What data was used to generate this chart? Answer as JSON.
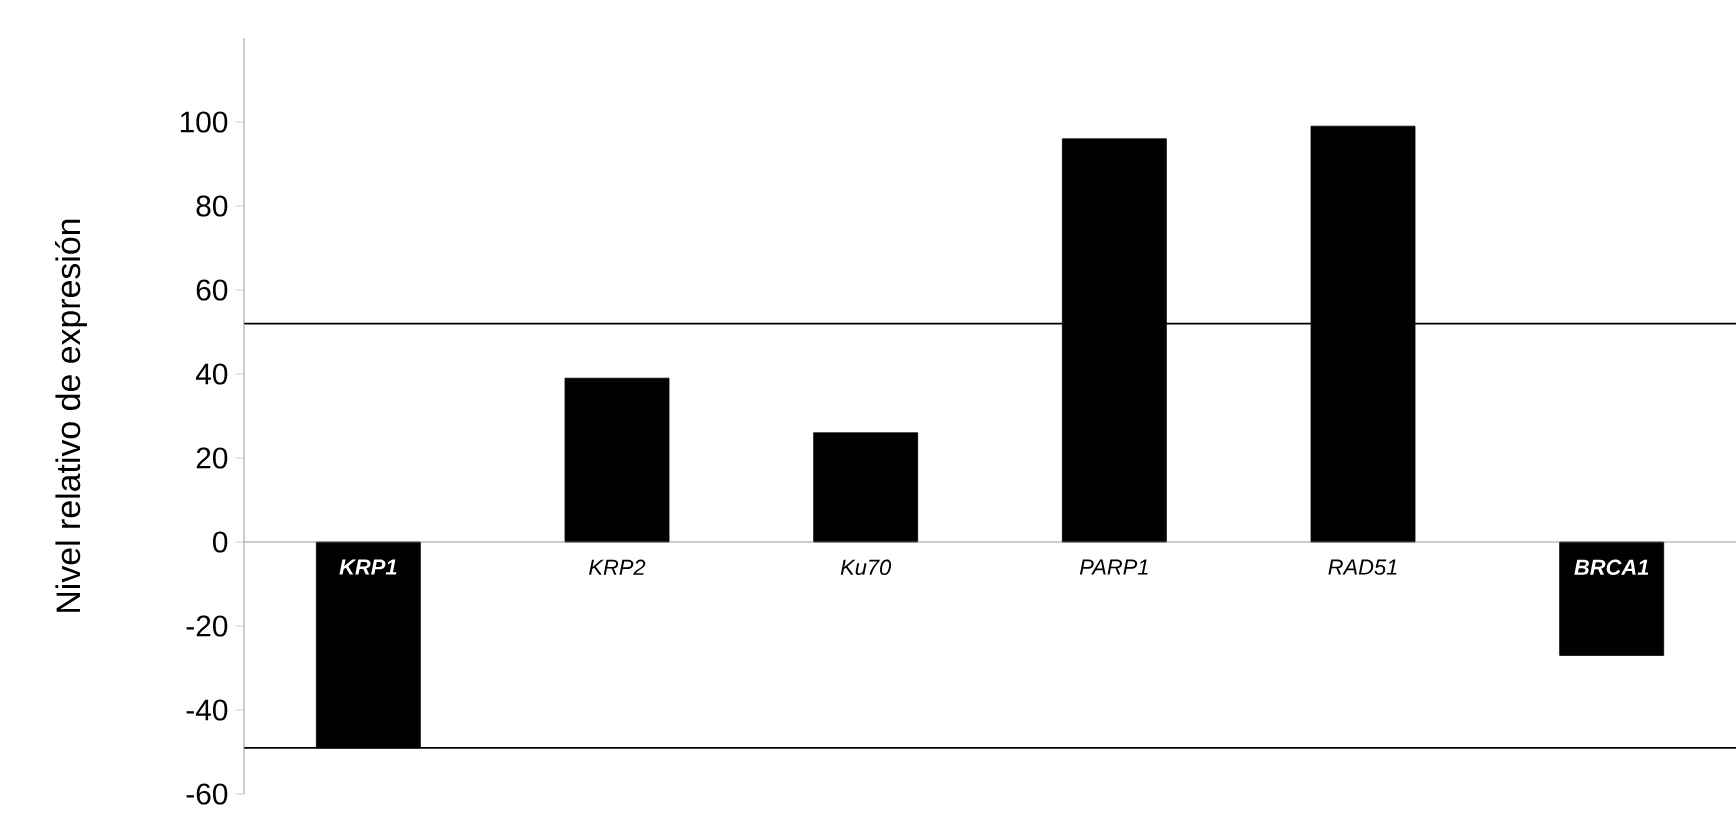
{
  "chart_data": {
    "type": "bar",
    "ylabel": "Nivel relativo de expresión",
    "categories": [
      "KRP1",
      "KRP2",
      "Ku70",
      "PARP1",
      "RAD51",
      "BRCA1"
    ],
    "values": [
      -49,
      39,
      26,
      96,
      99,
      -27
    ],
    "color": "#000000",
    "ylim": [
      -60,
      120
    ],
    "yticks": [
      -60,
      -40,
      -20,
      0,
      20,
      40,
      60,
      80,
      100
    ],
    "ref_lines": [
      {
        "axis": "y",
        "value": 52,
        "color": "#000000"
      },
      {
        "axis": "y",
        "value": -49,
        "color": "#000000"
      }
    ]
  }
}
